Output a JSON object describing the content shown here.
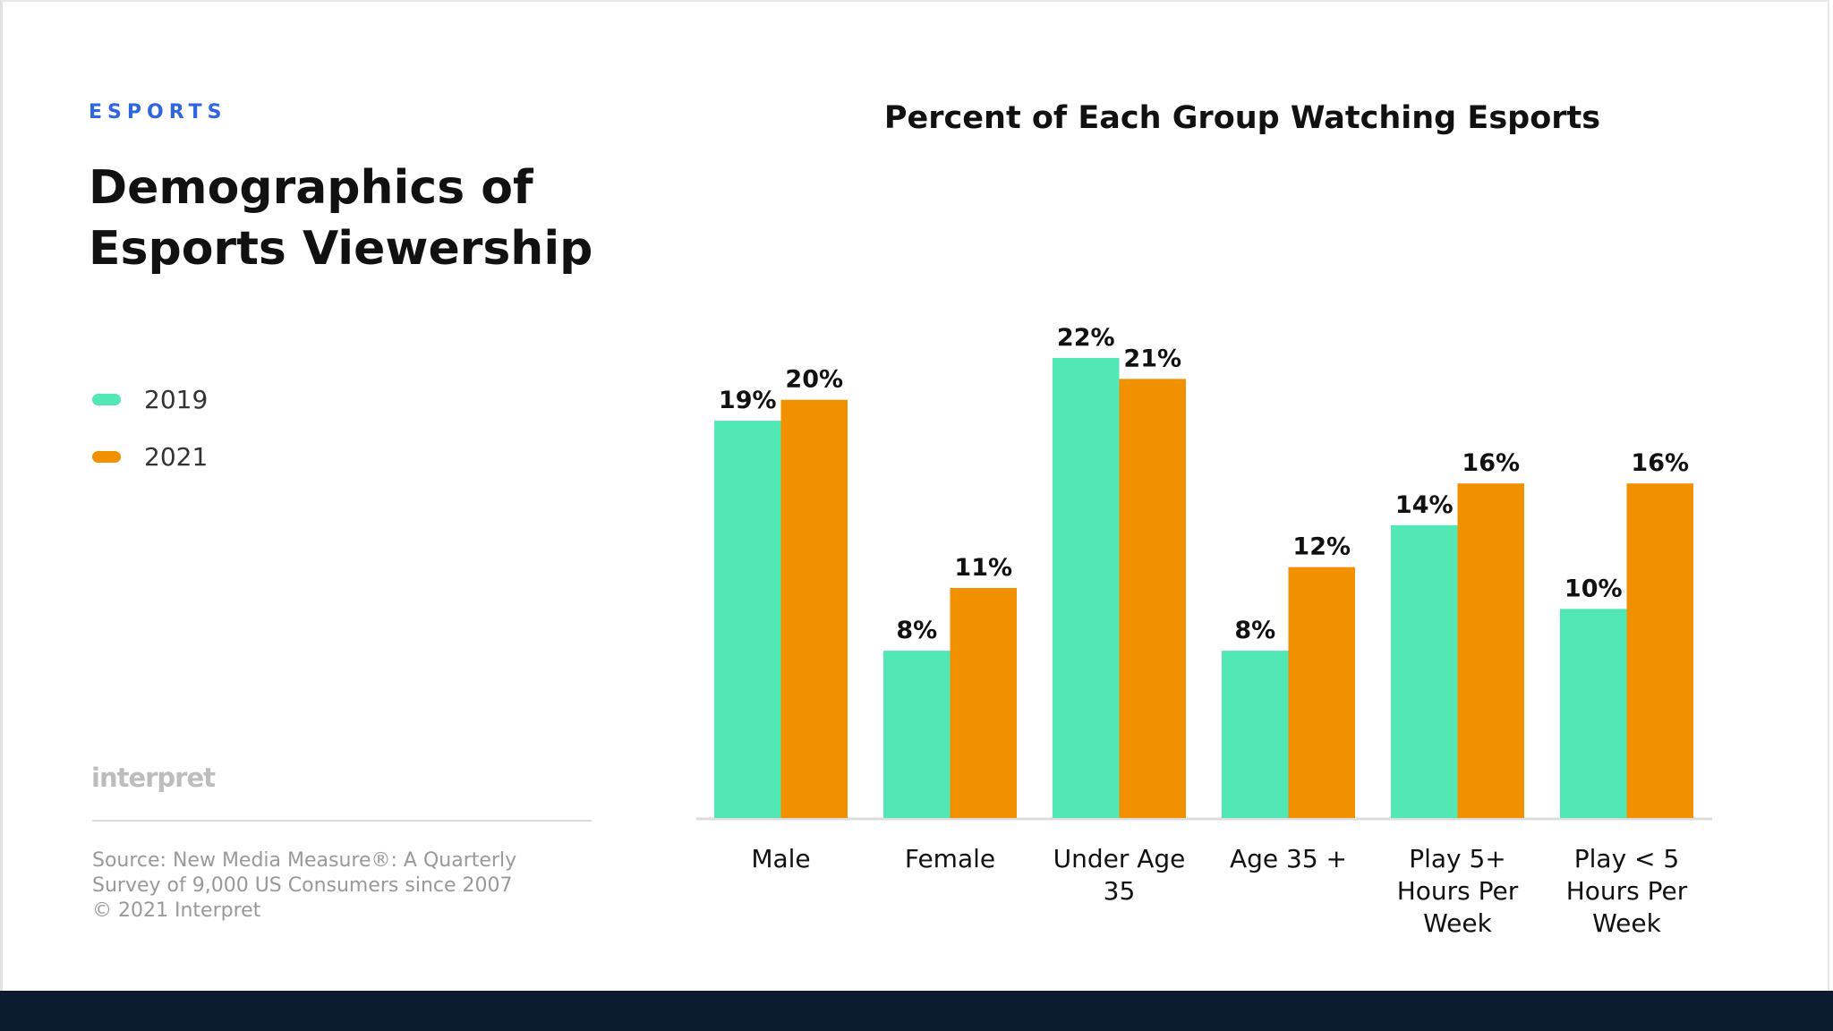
{
  "header": {
    "eyebrow": "ESPORTS",
    "title": "Demographics of Esports Viewership"
  },
  "legend": [
    {
      "label": "2019",
      "color": "#52e8b6"
    },
    {
      "label": "2021",
      "color": "#f29100"
    }
  ],
  "footer": {
    "logo": "interpret",
    "source": "Source: New Media Measure®: A Quarterly Survey of 9,000 US Consumers since 2007",
    "copyright": "© 2021 Interpret"
  },
  "chart_data": {
    "type": "bar",
    "title": "Percent of Each Group Watching Esports",
    "categories": [
      "Male",
      "Female",
      "Under Age 35",
      "Age 35 +",
      "Play 5+ Hours Per Week",
      "Play < 5 Hours Per Week"
    ],
    "series": [
      {
        "name": "2019",
        "color": "#52e8b6",
        "values": [
          19,
          8,
          22,
          8,
          14,
          10
        ],
        "labels": [
          "19%",
          "8%",
          "22%",
          "8%",
          "14%",
          "10%"
        ]
      },
      {
        "name": "2021",
        "color": "#f29100",
        "values": [
          20,
          11,
          21,
          12,
          16,
          16
        ],
        "labels": [
          "20%",
          "11%",
          "21%",
          "12%",
          "16%",
          "16%"
        ]
      }
    ],
    "ylim": [
      0,
      22
    ],
    "grid": false,
    "legend": "left"
  }
}
